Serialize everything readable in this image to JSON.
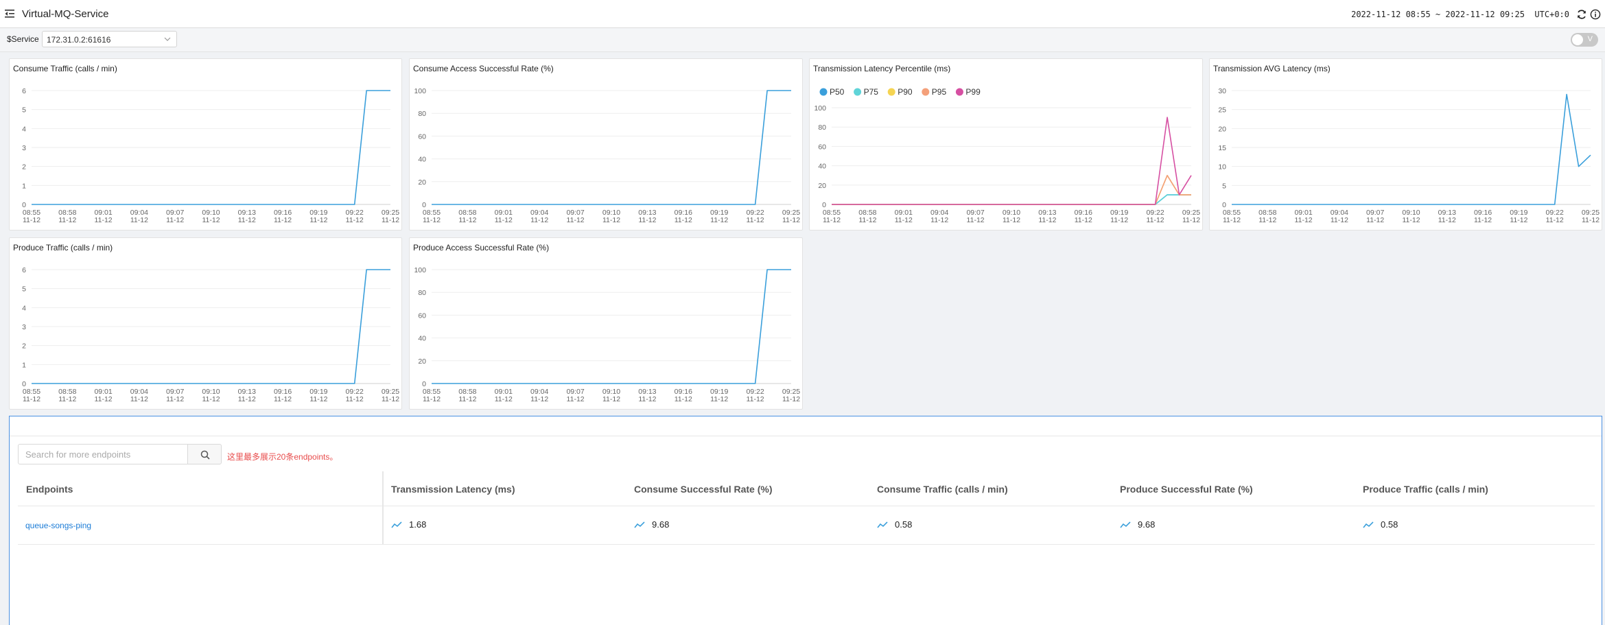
{
  "header": {
    "title": "Virtual-MQ-Service",
    "time_range": "2022-11-12 08:55 ~ 2022-11-12 09:25",
    "timezone": "UTC+0:0"
  },
  "filter": {
    "service_label": "$Service",
    "service_value": "172.31.0.2:61616",
    "toggle_label": "V"
  },
  "colors": {
    "accent": "#3a9fdb",
    "P50": "#3a9fdb",
    "P75": "#5fd4d8",
    "P90": "#f5d452",
    "P95": "#f4a07a",
    "P99": "#d64fa2",
    "hint": "#e84b4b"
  },
  "x_ticks": [
    "08:55",
    "08:58",
    "09:01",
    "09:04",
    "09:07",
    "09:10",
    "09:13",
    "09:16",
    "09:19",
    "09:22",
    "09:25"
  ],
  "x_date": "11-12",
  "chart_data": [
    {
      "type": "line",
      "title": "Consume Traffic (calls / min)",
      "ylim": [
        0,
        6
      ],
      "yticks": [
        0,
        1,
        2,
        3,
        4,
        5,
        6
      ],
      "series": [
        {
          "points": [
            [
              "08:55",
              0
            ],
            [
              "09:22",
              0
            ],
            [
              "09:23",
              6
            ],
            [
              "09:25",
              6
            ]
          ]
        }
      ]
    },
    {
      "type": "line",
      "title": "Consume Access Successful Rate (%)",
      "ylim": [
        0,
        100
      ],
      "yticks": [
        0,
        20,
        40,
        60,
        80,
        100
      ],
      "series": [
        {
          "points": [
            [
              "08:55",
              0
            ],
            [
              "09:22",
              0
            ],
            [
              "09:23",
              100
            ],
            [
              "09:25",
              100
            ]
          ]
        }
      ]
    },
    {
      "type": "line",
      "title": "Transmission Latency Percentile (ms)",
      "ylim": [
        0,
        100
      ],
      "yticks": [
        0,
        20,
        40,
        60,
        80,
        100
      ],
      "legend": [
        "P50",
        "P75",
        "P90",
        "P95",
        "P99"
      ],
      "series": [
        {
          "name": "P50",
          "points": [
            [
              "08:55",
              0
            ],
            [
              "09:22",
              0
            ],
            [
              "09:23",
              10
            ],
            [
              "09:24",
              10
            ],
            [
              "09:25",
              10
            ]
          ]
        },
        {
          "name": "P75",
          "points": [
            [
              "08:55",
              0
            ],
            [
              "09:22",
              0
            ],
            [
              "09:23",
              10
            ],
            [
              "09:24",
              10
            ],
            [
              "09:25",
              10
            ]
          ]
        },
        {
          "name": "P90",
          "points": [
            [
              "08:55",
              0
            ],
            [
              "09:22",
              0
            ],
            [
              "09:23",
              30
            ],
            [
              "09:24",
              10
            ],
            [
              "09:25",
              10
            ]
          ]
        },
        {
          "name": "P95",
          "points": [
            [
              "08:55",
              0
            ],
            [
              "09:22",
              0
            ],
            [
              "09:23",
              30
            ],
            [
              "09:24",
              10
            ],
            [
              "09:25",
              10
            ]
          ]
        },
        {
          "name": "P99",
          "points": [
            [
              "08:55",
              0
            ],
            [
              "09:22",
              0
            ],
            [
              "09:23",
              90
            ],
            [
              "09:24",
              10
            ],
            [
              "09:25",
              30
            ]
          ]
        }
      ]
    },
    {
      "type": "line",
      "title": "Transmission AVG Latency (ms)",
      "ylim": [
        0,
        30
      ],
      "yticks": [
        0,
        5,
        10,
        15,
        20,
        25,
        30
      ],
      "series": [
        {
          "points": [
            [
              "08:55",
              0
            ],
            [
              "09:22",
              0
            ],
            [
              "09:23",
              29
            ],
            [
              "09:24",
              10
            ],
            [
              "09:25",
              13
            ]
          ]
        }
      ]
    },
    {
      "type": "line",
      "title": "Produce Traffic (calls / min)",
      "ylim": [
        0,
        6
      ],
      "yticks": [
        0,
        1,
        2,
        3,
        4,
        5,
        6
      ],
      "series": [
        {
          "points": [
            [
              "08:55",
              0
            ],
            [
              "09:22",
              0
            ],
            [
              "09:23",
              6
            ],
            [
              "09:25",
              6
            ]
          ]
        }
      ]
    },
    {
      "type": "line",
      "title": "Produce Access Successful Rate (%)",
      "ylim": [
        0,
        100
      ],
      "yticks": [
        0,
        20,
        40,
        60,
        80,
        100
      ],
      "series": [
        {
          "points": [
            [
              "08:55",
              0
            ],
            [
              "09:22",
              0
            ],
            [
              "09:23",
              100
            ],
            [
              "09:25",
              100
            ]
          ]
        }
      ]
    }
  ],
  "endpoints": {
    "search_placeholder": "Search for more endpoints",
    "hint": "这里最多展示20条endpoints。",
    "columns": [
      "Endpoints",
      "Transmission Latency (ms)",
      "Consume Successful Rate (%)",
      "Consume Traffic (calls / min)",
      "Produce Successful Rate (%)",
      "Produce Traffic (calls / min)"
    ],
    "rows": [
      {
        "name": "queue-songs-ping",
        "values": [
          "1.68",
          "9.68",
          "0.58",
          "9.68",
          "0.58"
        ]
      }
    ]
  }
}
